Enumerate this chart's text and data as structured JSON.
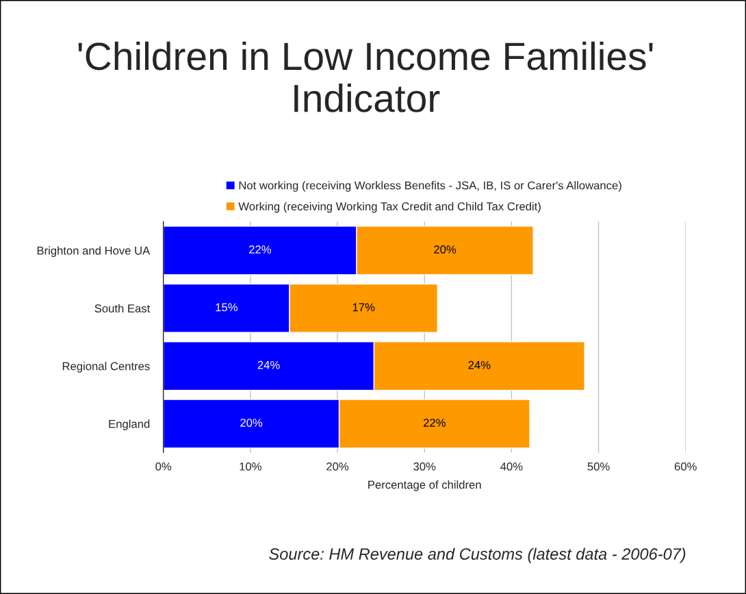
{
  "chart_data": {
    "type": "bar",
    "orientation": "horizontal",
    "stacked": true,
    "title": "'Children in Low Income Families' Indicator",
    "xlabel": "Percentage of children",
    "categories": [
      "Brighton and Hove UA",
      "South East",
      "Regional Centres",
      "England"
    ],
    "series": [
      {
        "name": "Not working (receiving Workless Benefits - JSA, IB, IS or Carer's Allowance)",
        "color": "#0000ff",
        "values": [
          22.2,
          14.5,
          24.2,
          20.2
        ],
        "value_labels": [
          "22%",
          "15%",
          "24%",
          "20%"
        ]
      },
      {
        "name": "Working (receiving Working Tax Credit and Child Tax Credit)",
        "color": "#ff9900",
        "values": [
          20.3,
          17.0,
          24.2,
          21.9
        ],
        "value_labels": [
          "20%",
          "17%",
          "24%",
          "22%"
        ]
      }
    ],
    "xlim": [
      0,
      60
    ],
    "xticks": [
      {
        "value": 0,
        "label": "0%"
      },
      {
        "value": 10,
        "label": "10%"
      },
      {
        "value": 20,
        "label": "20%"
      },
      {
        "value": 30,
        "label": "30%"
      },
      {
        "value": 40,
        "label": "40%"
      },
      {
        "value": 50,
        "label": "50%"
      },
      {
        "value": 60,
        "label": "60%"
      }
    ],
    "grid": "x",
    "legend": "top",
    "annotations": [
      "Source: HM Revenue and Customs (latest data - 2006-07)"
    ]
  }
}
